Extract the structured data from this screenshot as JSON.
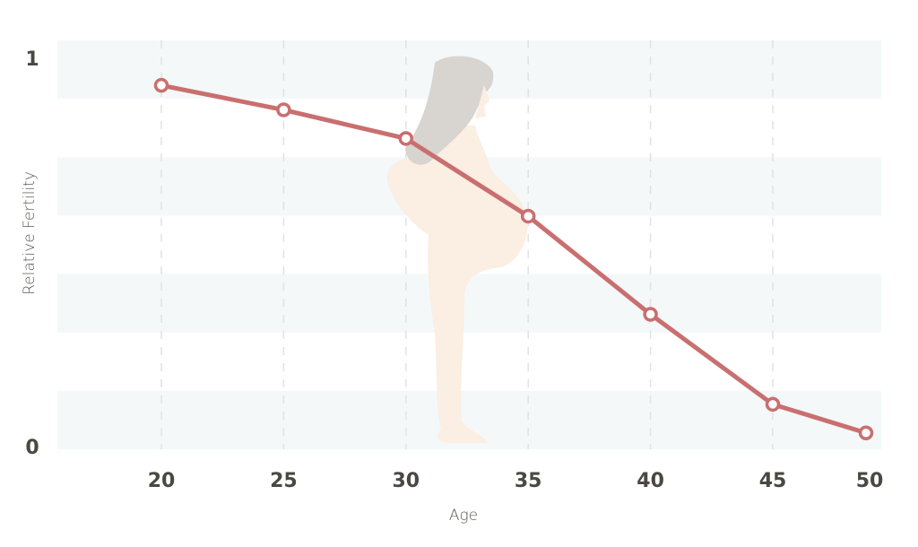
{
  "chart_data": {
    "type": "line",
    "title": "",
    "xlabel": "Age",
    "ylabel": "Relative Fertility",
    "x": [
      20,
      25,
      30,
      35,
      40,
      45,
      50
    ],
    "x_tick_labels": [
      "20",
      "25",
      "30",
      "35",
      "40",
      "45",
      "50"
    ],
    "y_tick_labels": [
      "0",
      "1"
    ],
    "ylim": [
      0,
      1
    ],
    "xlim": [
      16,
      50
    ],
    "series": [
      {
        "values": [
          0.89,
          0.83,
          0.76,
          0.57,
          0.33,
          0.11,
          0.04
        ]
      }
    ],
    "grid": "alternating horizontal bands and dashed vertical lines",
    "background_illustration": "pregnant-woman-silhouette",
    "colors": {
      "line": "#c96f6f",
      "band": "#f4f8f9",
      "text": "#4a4840",
      "body": "#fbeee2",
      "hair": "#d8d4d0"
    }
  }
}
